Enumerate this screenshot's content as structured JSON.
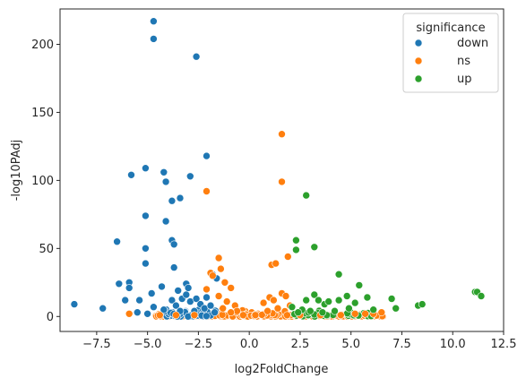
{
  "chart_data": {
    "type": "scatter",
    "title": "",
    "xlabel": "log2FoldChange",
    "ylabel": "-log10PAdj",
    "xlim": [
      -9.3,
      12.5
    ],
    "ylim": [
      -11,
      226
    ],
    "x_ticks": [
      -7.5,
      -5.0,
      -2.5,
      0.0,
      2.5,
      5.0,
      7.5,
      10.0,
      12.5
    ],
    "x_tick_labels": [
      "−7.5",
      "−5.0",
      "−2.5",
      "0.0",
      "2.5",
      "5.0",
      "7.5",
      "10.0",
      "12.5"
    ],
    "y_ticks": [
      0,
      50,
      100,
      150,
      200
    ],
    "y_tick_labels": [
      "0",
      "50",
      "100",
      "150",
      "200"
    ],
    "grid": false,
    "legend": {
      "title": "significance",
      "position": "top-right"
    },
    "colors": {
      "down": "#1f77b4",
      "ns": "#ff7f0e",
      "up": "#2ca02c"
    },
    "series": [
      {
        "name": "down",
        "points": [
          [
            -4.7,
            217
          ],
          [
            -4.7,
            204
          ],
          [
            -2.6,
            191
          ],
          [
            -2.1,
            118
          ],
          [
            -5.1,
            109
          ],
          [
            -5.8,
            104
          ],
          [
            -4.2,
            106
          ],
          [
            -2.9,
            103
          ],
          [
            -4.1,
            99
          ],
          [
            -3.4,
            87
          ],
          [
            -3.8,
            85
          ],
          [
            -5.1,
            74
          ],
          [
            -4.1,
            70
          ],
          [
            -6.5,
            55
          ],
          [
            -3.8,
            56
          ],
          [
            -3.7,
            53
          ],
          [
            -5.1,
            50
          ],
          [
            -5.1,
            39
          ],
          [
            -3.7,
            36
          ],
          [
            -6.4,
            24
          ],
          [
            -5.9,
            25
          ],
          [
            -5.9,
            21
          ],
          [
            -4.3,
            22
          ],
          [
            -4.8,
            17
          ],
          [
            -3.5,
            19
          ],
          [
            -3.1,
            24
          ],
          [
            -3.0,
            21
          ],
          [
            -1.8,
            31
          ],
          [
            -1.6,
            28
          ],
          [
            -2.1,
            14
          ],
          [
            -5.4,
            12
          ],
          [
            -6.1,
            12
          ],
          [
            -8.6,
            9
          ],
          [
            -7.2,
            6
          ],
          [
            -5.5,
            3
          ],
          [
            -4.7,
            7
          ],
          [
            -4.2,
            5
          ],
          [
            -3.8,
            12
          ],
          [
            -3.6,
            8
          ],
          [
            -3.3,
            13
          ],
          [
            -2.9,
            11
          ],
          [
            -2.6,
            13
          ],
          [
            -2.4,
            9
          ],
          [
            -2.2,
            6
          ],
          [
            -3.1,
            16
          ],
          [
            -2.7,
            4
          ],
          [
            -3.4,
            4
          ],
          [
            -1.9,
            8
          ],
          [
            -1.7,
            3
          ],
          [
            -5.0,
            2
          ]
        ]
      },
      {
        "name": "ns",
        "points": [
          [
            1.6,
            134
          ],
          [
            1.6,
            99
          ],
          [
            -2.1,
            92
          ],
          [
            1.9,
            44
          ],
          [
            1.1,
            38
          ],
          [
            1.3,
            39
          ],
          [
            -1.5,
            43
          ],
          [
            -1.4,
            35
          ],
          [
            -1.9,
            32
          ],
          [
            -1.8,
            30
          ],
          [
            -1.2,
            25
          ],
          [
            -0.9,
            21
          ],
          [
            -2.1,
            20
          ],
          [
            -1.5,
            15
          ],
          [
            -1.1,
            11
          ],
          [
            -0.7,
            8
          ],
          [
            0.7,
            10
          ],
          [
            1.0,
            14
          ],
          [
            1.2,
            12
          ],
          [
            1.6,
            17
          ],
          [
            1.8,
            15
          ],
          [
            2.0,
            8
          ],
          [
            1.4,
            6
          ],
          [
            0.9,
            4
          ],
          [
            -0.6,
            4
          ],
          [
            -0.9,
            3
          ],
          [
            -1.3,
            6
          ],
          [
            -5.9,
            2
          ],
          [
            -4.4,
            1
          ],
          [
            3.5,
            1
          ],
          [
            4.5,
            1
          ],
          [
            5.2,
            2
          ],
          [
            5.7,
            2
          ],
          [
            6.1,
            2
          ],
          [
            6.5,
            3
          ],
          [
            -0.3,
            1
          ],
          [
            0.3,
            1
          ],
          [
            2.5,
            1
          ],
          [
            -2.7,
            1
          ],
          [
            -3.6,
            1
          ]
        ]
      },
      {
        "name": "up",
        "points": [
          [
            2.8,
            89
          ],
          [
            2.3,
            56
          ],
          [
            3.2,
            51
          ],
          [
            2.3,
            49
          ],
          [
            4.4,
            31
          ],
          [
            5.4,
            23
          ],
          [
            2.8,
            12
          ],
          [
            3.2,
            16
          ],
          [
            3.4,
            12
          ],
          [
            3.7,
            9
          ],
          [
            3.9,
            11
          ],
          [
            4.4,
            12
          ],
          [
            4.8,
            15
          ],
          [
            5.2,
            10
          ],
          [
            5.8,
            14
          ],
          [
            7.0,
            13
          ],
          [
            7.2,
            6
          ],
          [
            8.3,
            8
          ],
          [
            8.5,
            9
          ],
          [
            11.1,
            18
          ],
          [
            11.2,
            18
          ],
          [
            11.4,
            15
          ],
          [
            4.9,
            6
          ],
          [
            4.2,
            4
          ],
          [
            6.1,
            5
          ],
          [
            2.6,
            5
          ],
          [
            2.1,
            7
          ],
          [
            3.0,
            4
          ],
          [
            2.4,
            3
          ],
          [
            3.6,
            3
          ]
        ]
      }
    ],
    "dense_band": {
      "note": "points clustered near y=0",
      "x_range": [
        -4.8,
        6.8
      ],
      "y_range": [
        0,
        4
      ]
    }
  }
}
